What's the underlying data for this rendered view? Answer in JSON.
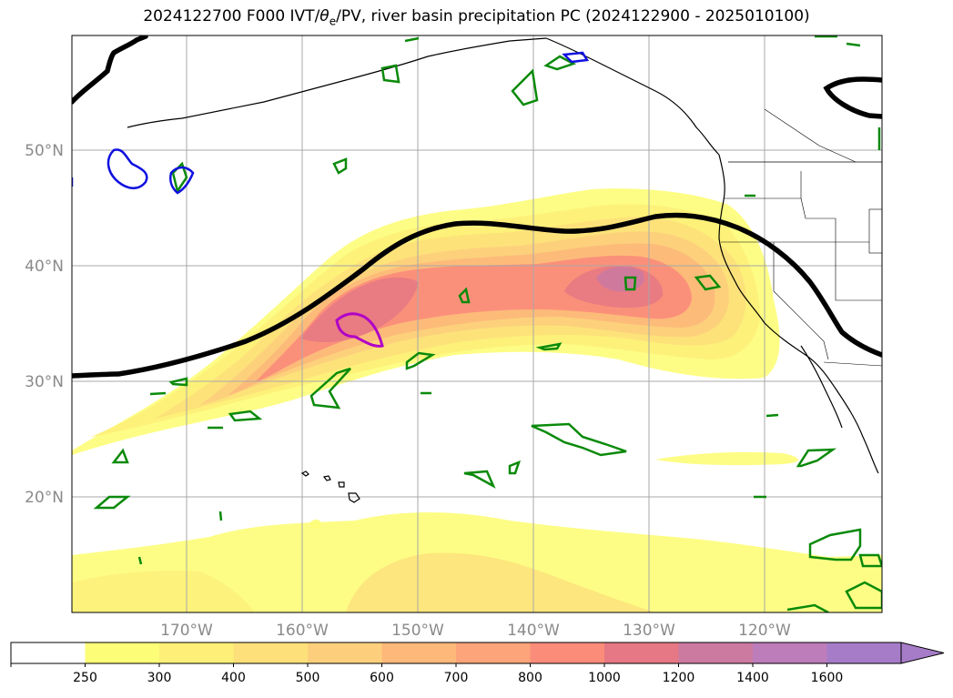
{
  "title": {
    "prefix": "2024122700 F000 IVT/",
    "theta": "θ",
    "theta_sub": "e",
    "suffix": "/PV, river basin precipitation PC (2024122900 - 2025010100)"
  },
  "lat_labels": [
    "50°N",
    "40°N",
    "30°N",
    "20°N"
  ],
  "lon_labels": [
    "170°W",
    "160°W",
    "150°W",
    "140°W",
    "130°W",
    "120°W"
  ],
  "colorbar": {
    "levels": [
      "250",
      "300",
      "400",
      "500",
      "600",
      "700",
      "800",
      "1000",
      "1200",
      "1400",
      "1600"
    ],
    "colors": [
      "#ffffff",
      "#fdfd78",
      "#fdef78",
      "#fde07a",
      "#fdcf7c",
      "#fdb87a",
      "#fda47a",
      "#fb8c7a",
      "#e57884",
      "#cc7aa0",
      "#bd7cba",
      "#a67cc8"
    ],
    "extend": "max"
  },
  "contours": {
    "thick_line_color": "#000000",
    "pv_green": "#0a8a0a",
    "pv_blue": "#1010e0",
    "pv_magenta": "#b000c8"
  }
}
